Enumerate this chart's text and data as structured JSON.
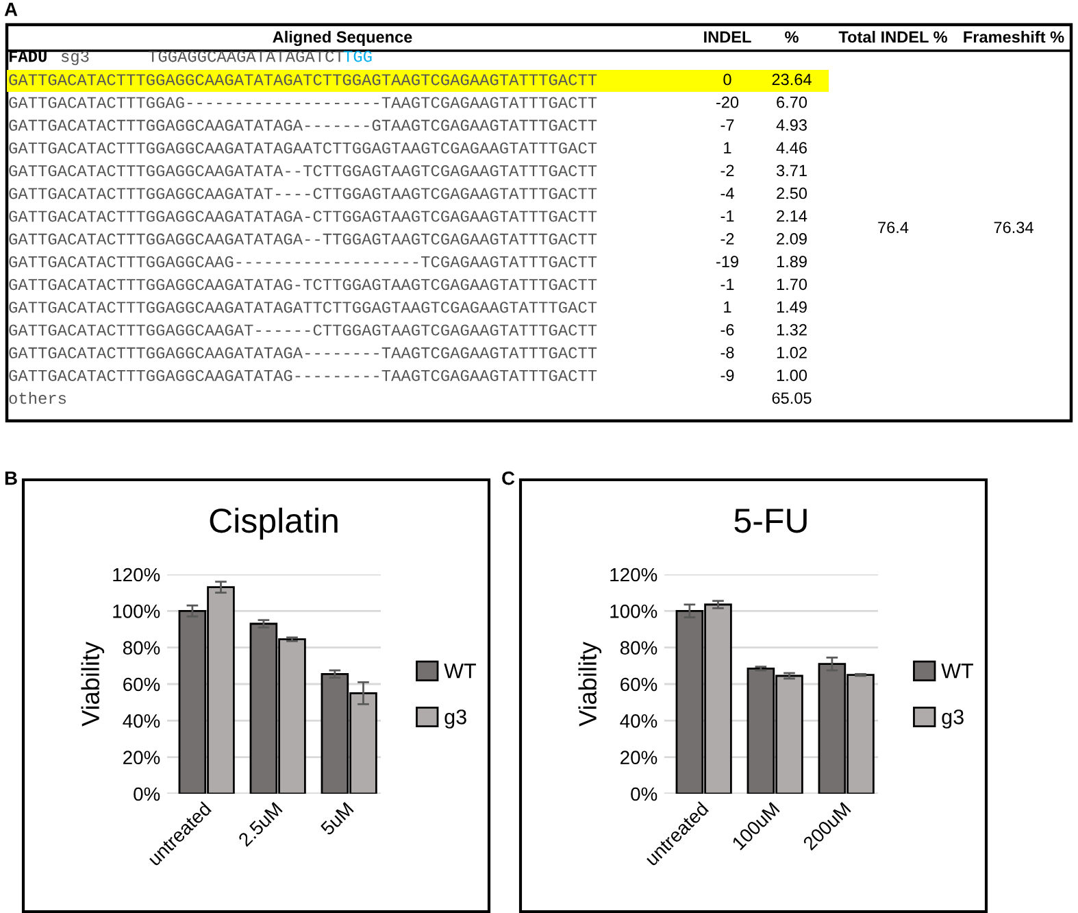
{
  "chart_data": [
    {
      "type": "other",
      "annotations": [
        "A",
        "FADU",
        "sg3",
        "TGGAGGCAAGATATAGATCT",
        "TGG",
        "76.4",
        "76.34"
      ],
      "colors": [
        "#ffff00",
        "#00b0f0"
      ],
      "categories": [
        "Aligned Sequence",
        "INDEL",
        "%",
        "Total INDEL %",
        "Frameshift %"
      ],
      "y_categories": [
        "GATTGACATACTTTGGAGGCAAGATATAGATCTTGGAGTAAGTCGAGAAGTATTTGACTT",
        "GATTGACATACTTTGGAG--------------------TAAGTCGAGAAGTATTTGACTT",
        "GATTGACATACTTTGGAGGCAAGATATAGA-------GTAAGTCGAGAAGTATTTGACTT",
        "GATTGACATACTTTGGAGGCAAGATATAGAATCTTGGAGTAAGTCGAGAAGTATTTGACT",
        "GATTGACATACTTTGGAGGCAAGATATA--TCTTGGAGTAAGTCGAGAAGTATTTGACTT",
        "GATTGACATACTTTGGAGGCAAGATAT----CTTGGAGTAAGTCGAGAAGTATTTGACTT",
        "GATTGACATACTTTGGAGGCAAGATATAGA-CTTGGAGTAAGTCGAGAAGTATTTGACTT",
        "GATTGACATACTTTGGAGGCAAGATATAGA--TTGGAGTAAGTCGAGAAGTATTTGACTT",
        "GATTGACATACTTTGGAGGCAAG-------------------TCGAGAAGTATTTGACTT",
        "GATTGACATACTTTGGAGGCAAGATATAG-TCTTGGAGTAAGTCGAGAAGTATTTGACTT",
        "GATTGACATACTTTGGAGGCAAGATATAGATTCTTGGAGTAAGTCGAGAAGTATTTGACT",
        "GATTGACATACTTTGGAGGCAAGAT------CTTGGAGTAAGTCGAGAAGTATTTGACTT",
        "GATTGACATACTTTGGAGGCAAGATATAGA--------TAAGTCGAGAAGTATTTGACTT",
        "GATTGACATACTTTGGAGGCAAGATATAG---------TAAGTCGAGAAGTATTTGACTT",
        "others"
      ],
      "cell_labels": [
        [
          "0",
          "23.64"
        ],
        [
          "-20",
          "6.70"
        ],
        [
          "-7",
          "4.93"
        ],
        [
          "1",
          "4.46"
        ],
        [
          "-2",
          "3.71"
        ],
        [
          "-4",
          "2.50"
        ],
        [
          "-1",
          "2.14"
        ],
        [
          "-2",
          "2.09"
        ],
        [
          "-19",
          "1.89"
        ],
        [
          "-1",
          "1.70"
        ],
        [
          "1",
          "1.49"
        ],
        [
          "-6",
          "1.32"
        ],
        [
          "-8",
          "1.02"
        ],
        [
          "-9",
          "1.00"
        ],
        [
          null,
          "65.05"
        ]
      ]
    },
    {
      "type": "bar",
      "title": "Cisplatin",
      "ylabel": "Viability",
      "annotations": [
        "B"
      ],
      "categories": [
        "untreated",
        "2.5uM",
        "5uM"
      ],
      "series": [
        {
          "name": "WT",
          "color": "#757070",
          "values": [
            100,
            93,
            65.5
          ],
          "errors": [
            3,
            2,
            2
          ]
        },
        {
          "name": "g3",
          "color": "#afabab",
          "values": [
            113,
            84.5,
            55
          ],
          "errors": [
            3,
            1,
            6
          ]
        }
      ],
      "ylim": [
        0,
        120
      ],
      "yticks": [
        {
          "value": 0,
          "label": "0%"
        },
        {
          "value": 20,
          "label": "20%"
        },
        {
          "value": 40,
          "label": "40%"
        },
        {
          "value": 60,
          "label": "60%"
        },
        {
          "value": 80,
          "label": "80%"
        },
        {
          "value": 100,
          "label": "100%"
        },
        {
          "value": 120,
          "label": "120%"
        }
      ],
      "grid": "y",
      "legend": "right"
    },
    {
      "type": "bar",
      "title": "5-FU",
      "ylabel": "Viability",
      "annotations": [
        "C"
      ],
      "categories": [
        "untreated",
        "100uM",
        "200uM"
      ],
      "series": [
        {
          "name": "WT",
          "color": "#757070",
          "values": [
            100,
            68.5,
            71
          ],
          "errors": [
            3.5,
            1,
            3.5
          ]
        },
        {
          "name": "g3",
          "color": "#afabab",
          "values": [
            103.5,
            64.5,
            65
          ],
          "errors": [
            2,
            1.5,
            0.5
          ]
        }
      ],
      "ylim": [
        0,
        120
      ],
      "yticks": [
        {
          "value": 0,
          "label": "0%"
        },
        {
          "value": 20,
          "label": "20%"
        },
        {
          "value": 40,
          "label": "40%"
        },
        {
          "value": 60,
          "label": "60%"
        },
        {
          "value": 80,
          "label": "80%"
        },
        {
          "value": 100,
          "label": "100%"
        },
        {
          "value": 120,
          "label": "120%"
        }
      ],
      "grid": "y",
      "legend": "right"
    }
  ]
}
